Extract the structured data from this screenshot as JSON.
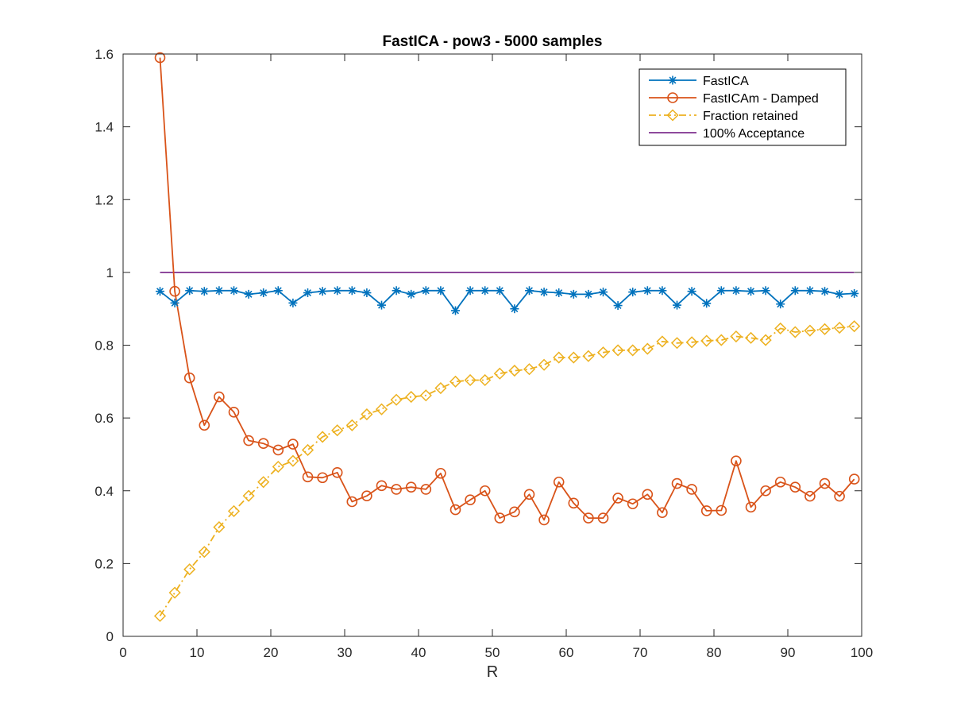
{
  "chart_data": {
    "type": "line",
    "title": "FastICA - pow3 - 5000 samples",
    "xlabel": "R",
    "ylabel": "",
    "xlim": [
      0,
      100
    ],
    "ylim": [
      0,
      1.6
    ],
    "xticks": [
      "0",
      "10",
      "20",
      "30",
      "40",
      "50",
      "60",
      "70",
      "80",
      "90",
      "100"
    ],
    "yticks": [
      "0",
      "0.2",
      "0.4",
      "0.6",
      "0.8",
      "1",
      "1.2",
      "1.4",
      "1.6"
    ],
    "grid": false,
    "legend_position": "top-right",
    "x": [
      5,
      7,
      9,
      11,
      13,
      15,
      17,
      19,
      21,
      23,
      25,
      27,
      29,
      31,
      33,
      35,
      37,
      39,
      41,
      43,
      45,
      47,
      49,
      51,
      53,
      55,
      57,
      59,
      61,
      63,
      65,
      67,
      69,
      71,
      73,
      75,
      77,
      79,
      81,
      83,
      85,
      87,
      89,
      91,
      93,
      95,
      97,
      99
    ],
    "series": [
      {
        "name": "FastICA",
        "color": "#0072BD",
        "marker": "star",
        "linestyle": "solid",
        "values": [
          0.948,
          0.916,
          0.95,
          0.948,
          0.95,
          0.95,
          0.94,
          0.944,
          0.95,
          0.916,
          0.944,
          0.948,
          0.95,
          0.95,
          0.944,
          0.91,
          0.95,
          0.94,
          0.95,
          0.95,
          0.895,
          0.95,
          0.95,
          0.95,
          0.9,
          0.95,
          0.946,
          0.944,
          0.94,
          0.94,
          0.946,
          0.909,
          0.946,
          0.95,
          0.95,
          0.91,
          0.948,
          0.915,
          0.95,
          0.95,
          0.948,
          0.95,
          0.913,
          0.95,
          0.95,
          0.948,
          0.94,
          0.942
        ]
      },
      {
        "name": "FastICAm - Damped",
        "color": "#D95319",
        "marker": "circle",
        "linestyle": "solid",
        "values": [
          1.59,
          0.948,
          0.71,
          0.58,
          0.658,
          0.616,
          0.538,
          0.53,
          0.512,
          0.528,
          0.438,
          0.436,
          0.45,
          0.37,
          0.386,
          0.414,
          0.404,
          0.41,
          0.404,
          0.448,
          0.348,
          0.375,
          0.4,
          0.325,
          0.342,
          0.39,
          0.32,
          0.424,
          0.366,
          0.325,
          0.325,
          0.38,
          0.364,
          0.39,
          0.34,
          0.42,
          0.404,
          0.345,
          0.346,
          0.482,
          0.355,
          0.4,
          0.424,
          0.41,
          0.385,
          0.42,
          0.385,
          0.432
        ]
      },
      {
        "name": "Fraction retained",
        "color": "#EDB120",
        "marker": "diamond",
        "linestyle": "dashdot",
        "values": [
          0.056,
          0.12,
          0.184,
          0.232,
          0.3,
          0.344,
          0.386,
          0.424,
          0.466,
          0.482,
          0.512,
          0.548,
          0.566,
          0.58,
          0.61,
          0.624,
          0.65,
          0.658,
          0.662,
          0.682,
          0.7,
          0.704,
          0.704,
          0.722,
          0.73,
          0.734,
          0.746,
          0.766,
          0.766,
          0.77,
          0.78,
          0.786,
          0.786,
          0.79,
          0.81,
          0.806,
          0.808,
          0.812,
          0.814,
          0.824,
          0.82,
          0.814,
          0.846,
          0.836,
          0.84,
          0.844,
          0.848,
          0.852
        ]
      },
      {
        "name": "100% Acceptance",
        "color": "#7E2F8E",
        "marker": "none",
        "linestyle": "solid",
        "values": [
          1,
          1,
          1,
          1,
          1,
          1,
          1,
          1,
          1,
          1,
          1,
          1,
          1,
          1,
          1,
          1,
          1,
          1,
          1,
          1,
          1,
          1,
          1,
          1,
          1,
          1,
          1,
          1,
          1,
          1,
          1,
          1,
          1,
          1,
          1,
          1,
          1,
          1,
          1,
          1,
          1,
          1,
          1,
          1,
          1,
          1,
          1,
          1
        ]
      }
    ]
  }
}
